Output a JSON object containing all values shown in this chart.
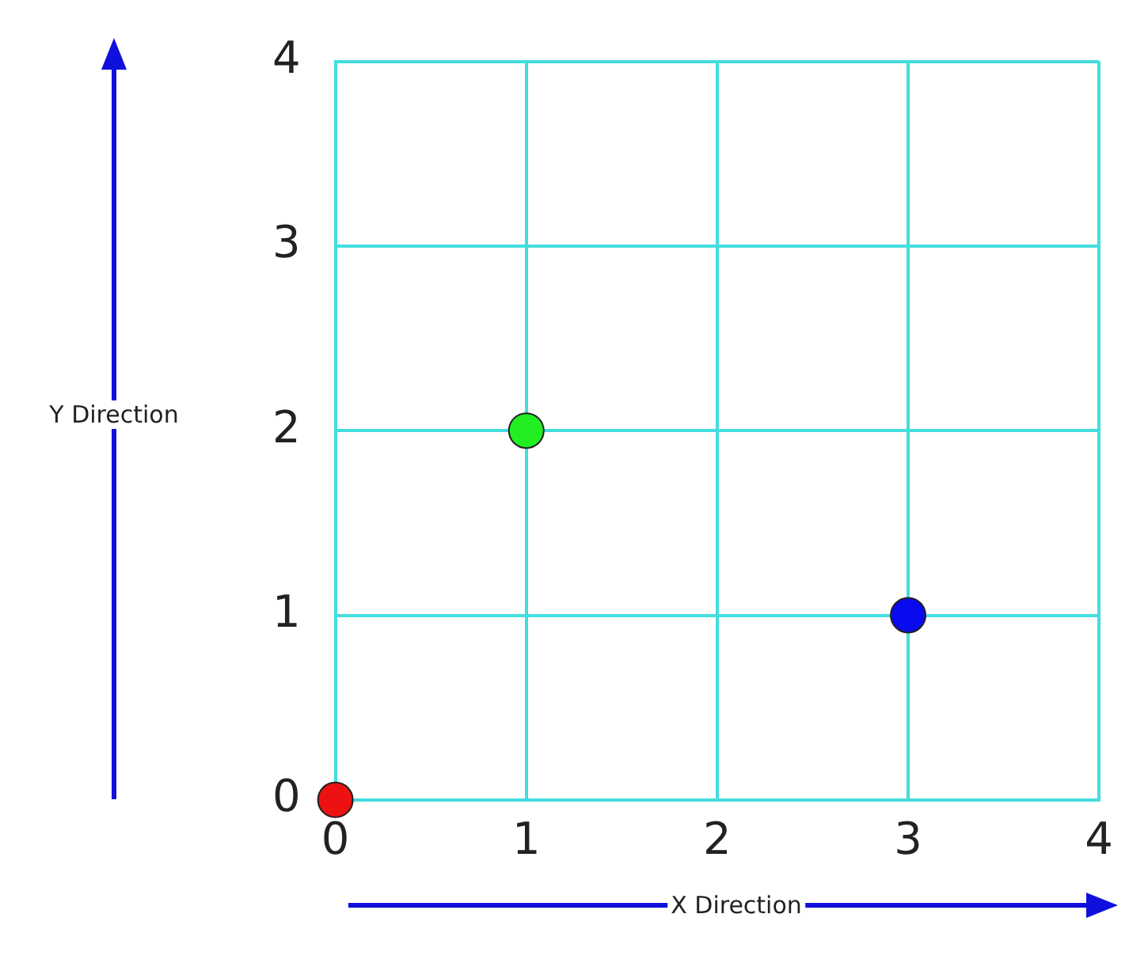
{
  "chart_data": {
    "type": "scatter",
    "xlabel": "X Direction",
    "ylabel": "Y Direction",
    "x": [
      0,
      1,
      3
    ],
    "values": [
      0,
      2,
      1
    ],
    "colors": [
      "#ee1111",
      "#22ee22",
      "#0a0aee"
    ],
    "xlim": [
      0,
      4
    ],
    "ylim": [
      0,
      4
    ],
    "xticks": [
      0,
      1,
      2,
      3,
      4
    ],
    "yticks": [
      0,
      1,
      2,
      3,
      4
    ],
    "grid": true,
    "marker": "circle"
  }
}
